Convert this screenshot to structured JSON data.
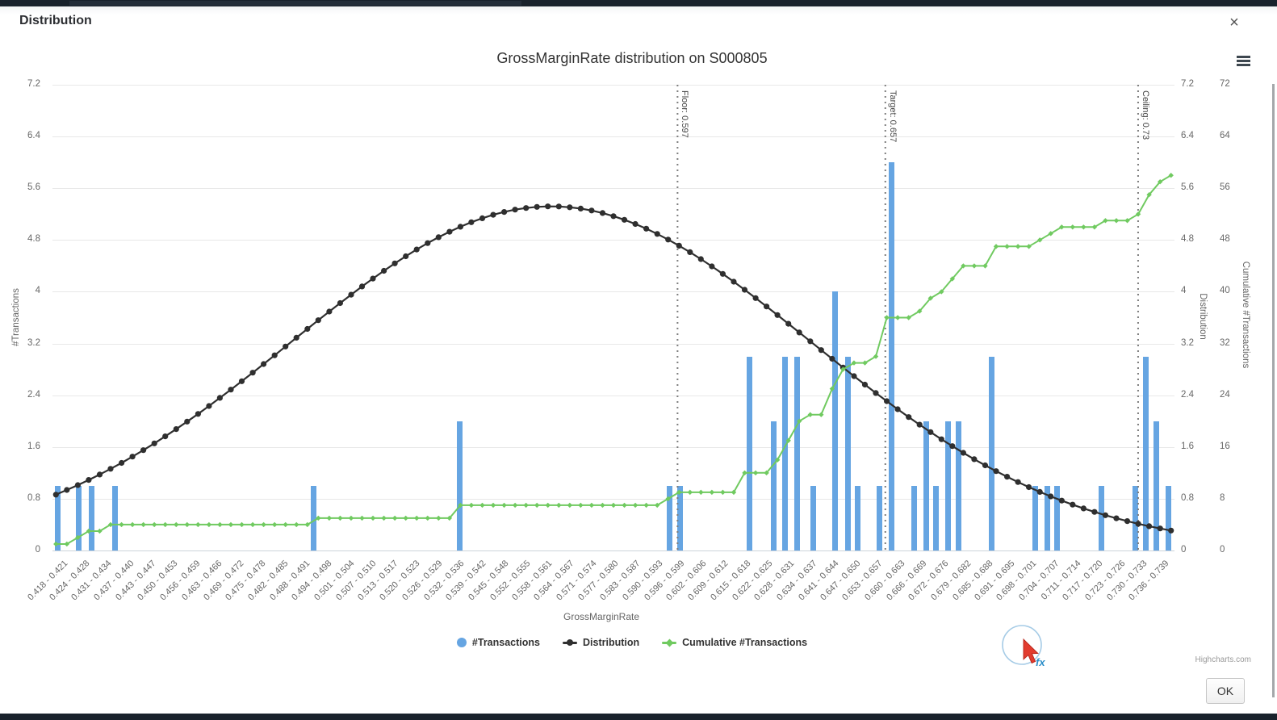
{
  "ui": {
    "modal_title": "Distribution",
    "close_icon": "×",
    "menu_icon": "hamburger-icon",
    "credits": "Highcharts.com",
    "ok_label": "OK",
    "fx_label": "fx"
  },
  "chart_data": {
    "type": "combo",
    "title": "GrossMarginRate distribution on S000805",
    "xlabel": "GrossMarginRate",
    "x_axis": {
      "min": 0.4165,
      "max": 0.7405,
      "first_bin_center": 0.4195,
      "bin_step": 0.00636,
      "bin_labels": [
        "0.418 - 0.421",
        "0.424 - 0.428",
        "0.431 - 0.434",
        "0.437 - 0.440",
        "0.443 - 0.447",
        "0.450 - 0.453",
        "0.456 - 0.459",
        "0.463 - 0.466",
        "0.469 - 0.472",
        "0.475 - 0.478",
        "0.482 - 0.485",
        "0.488 - 0.491",
        "0.494 - 0.498",
        "0.501 - 0.504",
        "0.507 - 0.510",
        "0.513 - 0.517",
        "0.520 - 0.523",
        "0.526 - 0.529",
        "0.532 - 0.536",
        "0.539 - 0.542",
        "0.545 - 0.548",
        "0.552 - 0.555",
        "0.558 - 0.561",
        "0.564 - 0.567",
        "0.571 - 0.574",
        "0.577 - 0.580",
        "0.583 - 0.587",
        "0.590 - 0.593",
        "0.596 - 0.599",
        "0.602 - 0.606",
        "0.609 - 0.612",
        "0.615 - 0.618",
        "0.622 - 0.625",
        "0.628 - 0.631",
        "0.634 - 0.637",
        "0.641 - 0.644",
        "0.647 - 0.650",
        "0.653 - 0.657",
        "0.660 - 0.663",
        "0.666 - 0.669",
        "0.672 - 0.676",
        "0.679 - 0.682",
        "0.685 - 0.688",
        "0.691 - 0.695",
        "0.698 - 0.701",
        "0.704 - 0.707",
        "0.711 - 0.714",
        "0.717 - 0.720",
        "0.723 - 0.726",
        "0.730 - 0.733",
        "0.736 - 0.739"
      ]
    },
    "axes": {
      "transactions": {
        "title": "#Transactions",
        "max": 7.2,
        "ticks": [
          "0",
          "0.8",
          "1.6",
          "2.4",
          "3.2",
          "4",
          "4.8",
          "5.6",
          "6.4",
          "7.2"
        ]
      },
      "distribution": {
        "title": "Distribution",
        "max": 7.2,
        "ticks": [
          "0",
          "0.8",
          "1.6",
          "2.4",
          "3.2",
          "4",
          "4.8",
          "5.6",
          "6.4",
          "7.2"
        ]
      },
      "cumulative": {
        "title": "Cumulative #Transactions",
        "max": 72,
        "ticks": [
          "0",
          "8",
          "16",
          "24",
          "32",
          "40",
          "48",
          "56",
          "64",
          "72"
        ]
      }
    },
    "series": [
      {
        "name": "#Transactions",
        "type": "column",
        "color": "#66a5e2",
        "points": [
          [
            0.418,
            1
          ],
          [
            0.4241,
            1
          ],
          [
            0.4278,
            1
          ],
          [
            0.4345,
            1
          ],
          [
            0.492,
            1
          ],
          [
            0.534,
            2
          ],
          [
            0.5946,
            1
          ],
          [
            0.5978,
            1
          ],
          [
            0.6177,
            3
          ],
          [
            0.6247,
            2
          ],
          [
            0.6281,
            3
          ],
          [
            0.6316,
            3
          ],
          [
            0.6363,
            1
          ],
          [
            0.6426,
            4
          ],
          [
            0.6461,
            3
          ],
          [
            0.6491,
            1
          ],
          [
            0.6554,
            1
          ],
          [
            0.6589,
            6
          ],
          [
            0.6654,
            1
          ],
          [
            0.6689,
            2
          ],
          [
            0.6717,
            1
          ],
          [
            0.6752,
            2
          ],
          [
            0.6782,
            2
          ],
          [
            0.6876,
            3
          ],
          [
            0.7004,
            1
          ],
          [
            0.7039,
            1
          ],
          [
            0.7067,
            1
          ],
          [
            0.7195,
            1
          ],
          [
            0.7293,
            1
          ],
          [
            0.7323,
            3
          ],
          [
            0.7353,
            2
          ],
          [
            0.7388,
            1
          ]
        ]
      },
      {
        "name": "Distribution",
        "type": "line",
        "color": "#2f2f2f",
        "curve": {
          "shape": "normal",
          "mean": 0.5605,
          "sigma": 0.075,
          "peak": 5.32,
          "x_start": 0.4175,
          "x_end": 0.7395,
          "samples": 103
        }
      },
      {
        "name": "Cumulative #Transactions",
        "type": "line",
        "color": "#70ca60",
        "derived_from": "#Transactions",
        "total": 58
      }
    ],
    "plot_lines": [
      {
        "label": "Floor: 0.597",
        "value": 0.597
      },
      {
        "label": "Target: 0.657",
        "value": 0.657
      },
      {
        "label": "Ceiling: 0.73",
        "value": 0.73
      }
    ],
    "legend_position": "bottom-center",
    "grid": true
  }
}
